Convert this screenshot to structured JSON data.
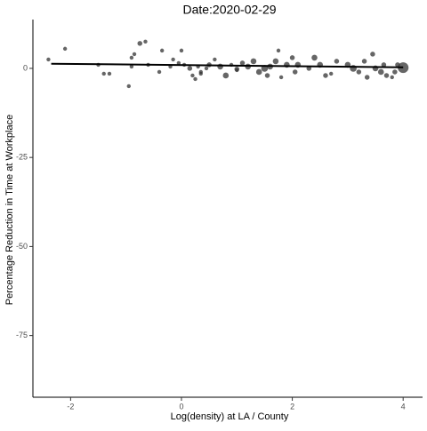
{
  "chart_data": {
    "type": "scatter",
    "title": "Date:2020-02-29",
    "x_label": "Log(density) at LA / County",
    "y_label": "Percentage Reduction in Time at Workplace",
    "color": "#333333",
    "x": [
      -2.4,
      -2.1,
      -1.5,
      -1.4,
      -1.3,
      -0.95,
      -0.9,
      -0.85,
      -0.75,
      -0.65,
      -0.9,
      -0.6,
      -0.4,
      -0.35,
      -0.2,
      -0.15,
      -0.05,
      0,
      0.05,
      0.15,
      0.2,
      0.25,
      0.3,
      0.35,
      0.45,
      0.5,
      0.6,
      0.7,
      0.8,
      0.9,
      1,
      1.1,
      1.2,
      1.3,
      1.4,
      1.5,
      1.55,
      1.7,
      1.75,
      1.8,
      1.9,
      2,
      2.05,
      2.1,
      2.3,
      2.4,
      2.5,
      2.6,
      2.7,
      2.8,
      3,
      3.1,
      3.2,
      3.3,
      3.35,
      3.45,
      3.5,
      3.6,
      3.65,
      3.7,
      3.8,
      3.85,
      3.9,
      4.0,
      1.0,
      1.6,
      0.35
    ],
    "y": [
      2.5,
      5.5,
      1,
      -1.5,
      -1.5,
      -5,
      3,
      4,
      7,
      7.5,
      0.5,
      1,
      -1,
      5,
      0.5,
      2.5,
      1.5,
      5,
      1,
      0,
      -2,
      -3,
      0.5,
      -1.5,
      0,
      1,
      2.5,
      0.5,
      -2,
      1,
      -0.5,
      1.5,
      0.5,
      2,
      -1,
      0,
      -2,
      2,
      5,
      -2.5,
      1,
      3,
      -1,
      1,
      0,
      3,
      1,
      -2,
      -1.5,
      2,
      1,
      0,
      -1,
      2,
      -2.5,
      4,
      0,
      -1,
      1,
      -2,
      -2.5,
      -1,
      1,
      0.2,
      -0.2,
      0.5,
      -1
    ],
    "sizes": [
      2,
      2,
      2,
      2,
      2,
      2,
      2,
      2,
      2.5,
      2,
      2,
      2,
      2,
      2,
      2,
      2,
      2,
      2,
      2,
      2.5,
      2,
      2,
      2,
      2,
      2,
      2.5,
      2,
      3,
      3,
      2,
      2,
      2.5,
      3,
      3,
      3,
      3.5,
      2.5,
      3,
      2,
      2,
      3,
      2.5,
      2.5,
      3,
      2.5,
      3,
      3,
      2.5,
      2,
      2.5,
      3,
      3.5,
      2.5,
      2.5,
      2.5,
      2.5,
      3,
      3,
      2.5,
      2.5,
      2,
      2.5,
      2.5,
      5.5,
      2.5,
      3,
      2
    ],
    "trend": {
      "x": [
        -2.35,
        4.0
      ],
      "y": [
        1.3,
        0.3
      ]
    },
    "xlim": [
      -2.68,
      4.35
    ],
    "ylim": [
      -92.3,
      13.7
    ],
    "xticks": [
      -2,
      0,
      2,
      4
    ],
    "yticks": [
      0,
      -25,
      -50,
      -75
    ]
  }
}
